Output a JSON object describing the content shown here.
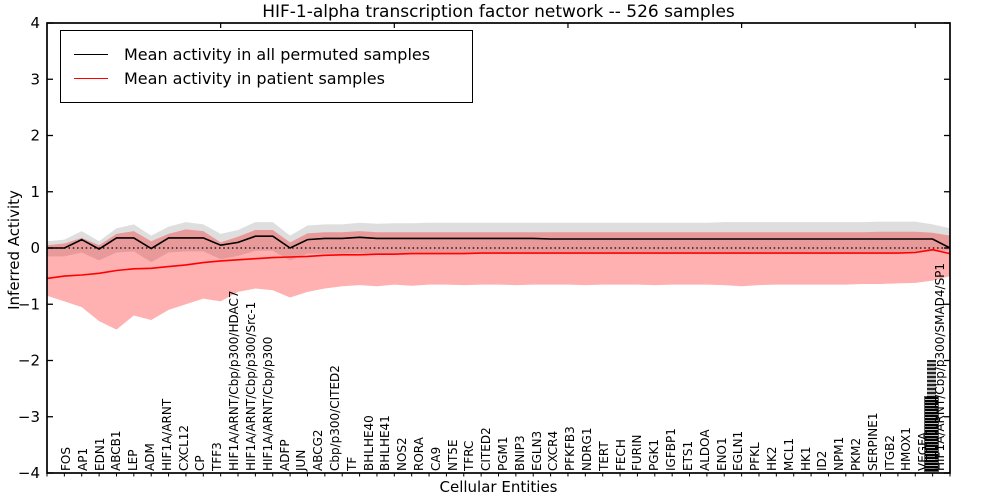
{
  "title": "HIF-1-alpha transcription factor network -- 526 samples",
  "legend": {
    "entries": [
      {
        "label": "Mean activity in all permuted samples",
        "color": "#000000"
      },
      {
        "label": "Mean activity in patient samples",
        "color": "#ff0000"
      }
    ]
  },
  "chart_data": {
    "type": "line",
    "title": "HIF-1-alpha transcription factor network -- 526 samples",
    "xlabel": "Cellular Entities",
    "ylabel": "Inferred Activity",
    "ylim": [
      -4,
      4
    ],
    "yticks": [
      4,
      3,
      2,
      1,
      0,
      -1,
      -2,
      -3,
      -4
    ],
    "top_tick_positions": [
      10,
      20,
      30,
      40,
      50
    ],
    "zero_line_dotted": true,
    "legend_position": "upper left",
    "grid": false,
    "categories": [
      "FOS",
      "AP1",
      "EDN1",
      "ABCB1",
      "LEP",
      "ADM",
      "HIF1A/ARNT",
      "CXCL12",
      "CP",
      "TFF3",
      "HIF1A/ARNT/Cbp/p300/HDAC7",
      "HIF1A/ARNT/Cbp/p300/Src-1",
      "HIF1A/ARNT/Cbp/p300",
      "ADFP",
      "JUN",
      "ABCG2",
      "Cbp/p300/CITED2",
      "TF",
      "BHLHE40",
      "BHLHE41",
      "NOS2",
      "RORA",
      "CA9",
      "NT5E",
      "TFRC",
      "CITED2",
      "PGM1",
      "BNIP3",
      "EGLN3",
      "CXCR4",
      "PFKFB3",
      "NDRG1",
      "TERT",
      "FECH",
      "FURIN",
      "PGK1",
      "IGFBP1",
      "ETS1",
      "ALDOA",
      "ENO1",
      "EGLN1",
      "PFKL",
      "HK2",
      "MCL1",
      "HK1",
      "ID2",
      "NPM1",
      "PKM2",
      "SERPINE1",
      "ITGB2",
      "HMOX1",
      "VEGFA",
      "HIF1A/ARNT/Cbp/p300/SMAD4/SP1"
    ],
    "rightmost_labels_overlapped_illegible": true,
    "series": [
      {
        "name": "Mean activity in all permuted samples",
        "color": "#000000",
        "values": [
          0.0,
          0.0,
          0.15,
          -0.02,
          0.18,
          0.18,
          -0.01,
          0.18,
          0.18,
          0.18,
          0.05,
          0.1,
          0.21,
          0.21,
          0.0,
          0.15,
          0.17,
          0.17,
          0.19,
          0.17,
          0.17,
          0.17,
          0.17,
          0.17,
          0.17,
          0.17,
          0.17,
          0.17,
          0.17,
          0.16,
          0.16,
          0.16,
          0.16,
          0.16,
          0.16,
          0.16,
          0.16,
          0.16,
          0.16,
          0.16,
          0.16,
          0.16,
          0.16,
          0.16,
          0.16,
          0.16,
          0.16,
          0.16,
          0.16,
          0.16,
          0.16,
          0.16,
          0.0
        ]
      },
      {
        "name": "Mean activity in patient samples",
        "color": "#ff0000",
        "values": [
          -0.54,
          -0.5,
          -0.48,
          -0.45,
          -0.4,
          -0.37,
          -0.36,
          -0.33,
          -0.3,
          -0.26,
          -0.23,
          -0.21,
          -0.19,
          -0.17,
          -0.16,
          -0.15,
          -0.13,
          -0.12,
          -0.12,
          -0.11,
          -0.11,
          -0.1,
          -0.1,
          -0.1,
          -0.1,
          -0.09,
          -0.09,
          -0.09,
          -0.09,
          -0.09,
          -0.09,
          -0.09,
          -0.09,
          -0.09,
          -0.09,
          -0.09,
          -0.09,
          -0.09,
          -0.09,
          -0.09,
          -0.09,
          -0.09,
          -0.09,
          -0.09,
          -0.09,
          -0.09,
          -0.09,
          -0.09,
          -0.09,
          -0.09,
          -0.08,
          -0.03,
          -0.1
        ]
      }
    ],
    "bands": [
      {
        "name": "permuted samples confidence band",
        "color": "rgba(0,0,0,0.13)",
        "upper": [
          0.12,
          0.15,
          0.3,
          0.12,
          0.35,
          0.42,
          0.22,
          0.38,
          0.46,
          0.42,
          0.25,
          0.32,
          0.46,
          0.46,
          0.22,
          0.4,
          0.42,
          0.42,
          0.45,
          0.43,
          0.44,
          0.44,
          0.45,
          0.45,
          0.45,
          0.45,
          0.45,
          0.45,
          0.45,
          0.45,
          0.45,
          0.45,
          0.45,
          0.45,
          0.45,
          0.45,
          0.45,
          0.45,
          0.45,
          0.46,
          0.46,
          0.46,
          0.46,
          0.46,
          0.46,
          0.46,
          0.46,
          0.46,
          0.47,
          0.47,
          0.47,
          0.42,
          0.35
        ],
        "lower": [
          -0.15,
          -0.15,
          -0.08,
          -0.22,
          -0.08,
          -0.06,
          -0.25,
          -0.08,
          -0.06,
          -0.06,
          -0.2,
          -0.14,
          -0.05,
          -0.05,
          -0.22,
          -0.1,
          -0.1,
          -0.1,
          -0.09,
          -0.1,
          -0.1,
          -0.1,
          -0.1,
          -0.1,
          -0.1,
          -0.1,
          -0.1,
          -0.1,
          -0.1,
          -0.1,
          -0.1,
          -0.1,
          -0.1,
          -0.1,
          -0.1,
          -0.1,
          -0.1,
          -0.1,
          -0.1,
          -0.1,
          -0.1,
          -0.1,
          -0.1,
          -0.1,
          -0.1,
          -0.1,
          -0.1,
          -0.1,
          -0.1,
          -0.1,
          -0.08,
          -0.06,
          -0.04
        ]
      },
      {
        "name": "patient samples confidence band",
        "color": "rgba(255,0,0,0.31)",
        "upper": [
          0.05,
          0.08,
          0.18,
          0.05,
          0.25,
          0.3,
          0.12,
          0.25,
          0.33,
          0.3,
          0.1,
          0.2,
          0.32,
          0.32,
          0.1,
          0.26,
          0.28,
          0.28,
          0.3,
          0.28,
          0.28,
          0.28,
          0.28,
          0.28,
          0.28,
          0.28,
          0.28,
          0.28,
          0.28,
          0.28,
          0.28,
          0.28,
          0.28,
          0.28,
          0.28,
          0.28,
          0.28,
          0.28,
          0.28,
          0.28,
          0.28,
          0.28,
          0.28,
          0.28,
          0.28,
          0.28,
          0.28,
          0.28,
          0.29,
          0.29,
          0.29,
          0.27,
          0.22
        ],
        "lower": [
          -0.85,
          -0.95,
          -1.05,
          -1.3,
          -1.45,
          -1.2,
          -1.28,
          -1.1,
          -1.0,
          -0.9,
          -0.95,
          -0.78,
          -0.72,
          -0.75,
          -0.88,
          -0.78,
          -0.72,
          -0.68,
          -0.66,
          -0.68,
          -0.65,
          -0.67,
          -0.65,
          -0.65,
          -0.66,
          -0.65,
          -0.65,
          -0.66,
          -0.65,
          -0.65,
          -0.65,
          -0.66,
          -0.65,
          -0.65,
          -0.65,
          -0.66,
          -0.65,
          -0.65,
          -0.65,
          -0.66,
          -0.68,
          -0.66,
          -0.65,
          -0.65,
          -0.65,
          -0.65,
          -0.65,
          -0.64,
          -0.64,
          -0.63,
          -0.62,
          -0.58,
          -0.5
        ]
      }
    ]
  }
}
